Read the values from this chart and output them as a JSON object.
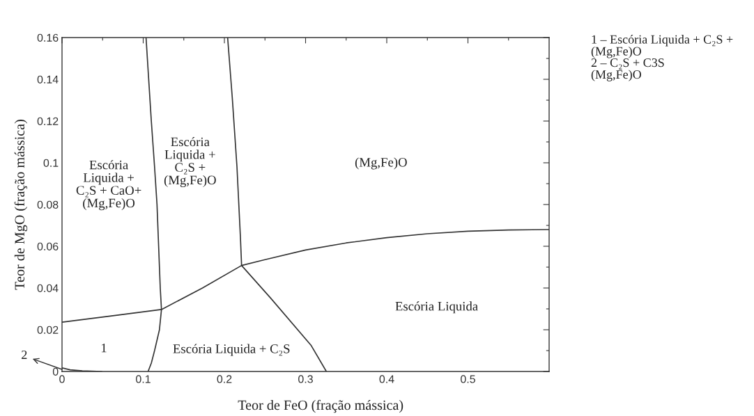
{
  "chart_data": {
    "type": "line",
    "xlabel": "Teor de FeO (fração mássica)",
    "ylabel": "Teor de MgO (fração mássica)",
    "xlim": [
      0,
      0.6
    ],
    "ylim": [
      0,
      0.16
    ],
    "xticks": [
      0,
      {
        "value": 0.05,
        "label": null
      },
      0.1,
      {
        "value": 0.15,
        "label": null
      },
      0.2,
      {
        "value": 0.25,
        "label": null
      },
      0.3,
      {
        "value": 0.35,
        "label": null
      },
      0.4,
      {
        "value": 0.45,
        "label": null
      },
      0.5,
      {
        "value": 0.55,
        "label": null
      }
    ],
    "yticks": [
      0,
      {
        "value": 0.01,
        "label": null
      },
      0.02,
      {
        "value": 0.03,
        "label": null
      },
      0.04,
      {
        "value": 0.05,
        "label": null
      },
      0.06,
      {
        "value": 0.07,
        "label": null
      },
      0.08,
      {
        "value": 0.09,
        "label": null
      },
      0.1,
      {
        "value": 0.11,
        "label": null
      },
      0.12,
      {
        "value": 0.13,
        "label": null
      },
      0.14,
      {
        "value": 0.15,
        "label": null
      },
      0.16
    ],
    "grid": false,
    "marker": "none",
    "line_style": "solid",
    "series": [
      {
        "color": "#333333",
        "x": [
          0.1035,
          0.11,
          0.114,
          0.117,
          0.119,
          0.121,
          0.1225,
          0.12,
          0.114,
          0.11,
          0.106
        ],
        "values": [
          0.16,
          0.12,
          0.098,
          0.08,
          0.06,
          0.04,
          0.0297,
          0.02,
          0.01,
          0.004,
          0
        ]
      },
      {
        "color": "#333333",
        "x": [
          0.204,
          0.2097,
          0.2155,
          0.2197,
          0.2212
        ],
        "values": [
          0.16,
          0.1313,
          0.098,
          0.0647,
          0.0508
        ]
      },
      {
        "color": "#333333",
        "x": [
          0,
          0.061,
          0.1225,
          0.173,
          0.2212,
          0.25,
          0.3,
          0.35,
          0.4,
          0.45,
          0.5,
          0.55,
          0.6
        ],
        "values": [
          0.0236,
          0.0266,
          0.0297,
          0.04,
          0.0508,
          0.0536,
          0.0582,
          0.0616,
          0.0641,
          0.066,
          0.0672,
          0.0678,
          0.068
        ]
      },
      {
        "color": "#333333",
        "x": [
          0.2212,
          0.2567,
          0.307,
          0.3256
        ],
        "values": [
          0.0508,
          0.0353,
          0.0124,
          0
        ]
      },
      {
        "color": "#333333",
        "x": [
          0,
          0.01,
          0.025,
          0.049
        ],
        "values": [
          0.0017,
          0.0008,
          0.0003,
          0
        ]
      }
    ],
    "annotations": [
      "Escória\nLiquida +\nC₂S + CaO+\n(Mg,Fe)O",
      "Escória\nLiquida +\nC₂S +\n(Mg,Fe)O",
      "(Mg,Fe)O",
      "Escória Liquida",
      "Escória Liquida + C₂S",
      "1",
      {
        "text": "2",
        "x": 0,
        "y": 0.001
      },
      "1 – Escória Liquida + C₂S +\n(Mg,Fe)O",
      "2 – C₂S + C3S\n(Mg,Fe)O"
    ]
  }
}
